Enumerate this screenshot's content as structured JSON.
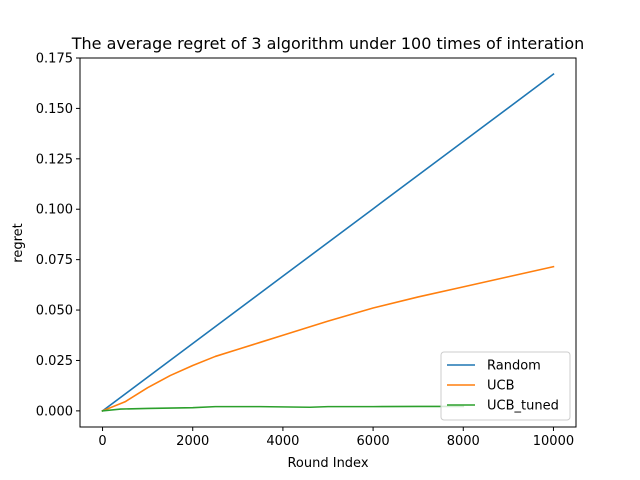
{
  "chart_data": {
    "type": "line",
    "title": "The average regret of 3 algorithm under 100 times of interation",
    "xlabel": "Round Index",
    "ylabel": "regret",
    "xlim": [
      -500,
      10500
    ],
    "ylim": [
      -0.008,
      0.175
    ],
    "xticks": [
      0,
      2000,
      4000,
      6000,
      8000,
      10000
    ],
    "xtick_labels": [
      "0",
      "2000",
      "4000",
      "6000",
      "8000",
      "10000"
    ],
    "yticks": [
      0.0,
      0.025,
      0.05,
      0.075,
      0.1,
      0.125,
      0.15,
      0.175
    ],
    "ytick_labels": [
      "0.000",
      "0.025",
      "0.050",
      "0.075",
      "0.100",
      "0.125",
      "0.150",
      "0.175"
    ],
    "grid": false,
    "legend_position": "lower-right",
    "series": [
      {
        "name": "Random",
        "color": "#1f77b4",
        "points": [
          [
            0,
            0.0
          ],
          [
            2000,
            0.0334
          ],
          [
            4000,
            0.0668
          ],
          [
            6000,
            0.1002
          ],
          [
            8000,
            0.1336
          ],
          [
            10000,
            0.167
          ]
        ]
      },
      {
        "name": "UCB",
        "color": "#ff7f0e",
        "points": [
          [
            0,
            0.0
          ],
          [
            500,
            0.0045
          ],
          [
            1000,
            0.0115
          ],
          [
            1500,
            0.0175
          ],
          [
            2000,
            0.0225
          ],
          [
            2500,
            0.027
          ],
          [
            3000,
            0.0305
          ],
          [
            3500,
            0.034
          ],
          [
            4000,
            0.0375
          ],
          [
            5000,
            0.0445
          ],
          [
            6000,
            0.051
          ],
          [
            7000,
            0.0565
          ],
          [
            8000,
            0.0615
          ],
          [
            9000,
            0.0665
          ],
          [
            10000,
            0.0715
          ]
        ]
      },
      {
        "name": "UCB_tuned",
        "color": "#2ca02c",
        "points": [
          [
            0,
            0.0
          ],
          [
            400,
            0.0009
          ],
          [
            1000,
            0.0012
          ],
          [
            2000,
            0.0016
          ],
          [
            2500,
            0.0021
          ],
          [
            3500,
            0.0021
          ],
          [
            4600,
            0.0018
          ],
          [
            5000,
            0.0021
          ],
          [
            6000,
            0.0021
          ],
          [
            7000,
            0.0022
          ],
          [
            8000,
            0.0022
          ]
        ]
      }
    ]
  }
}
